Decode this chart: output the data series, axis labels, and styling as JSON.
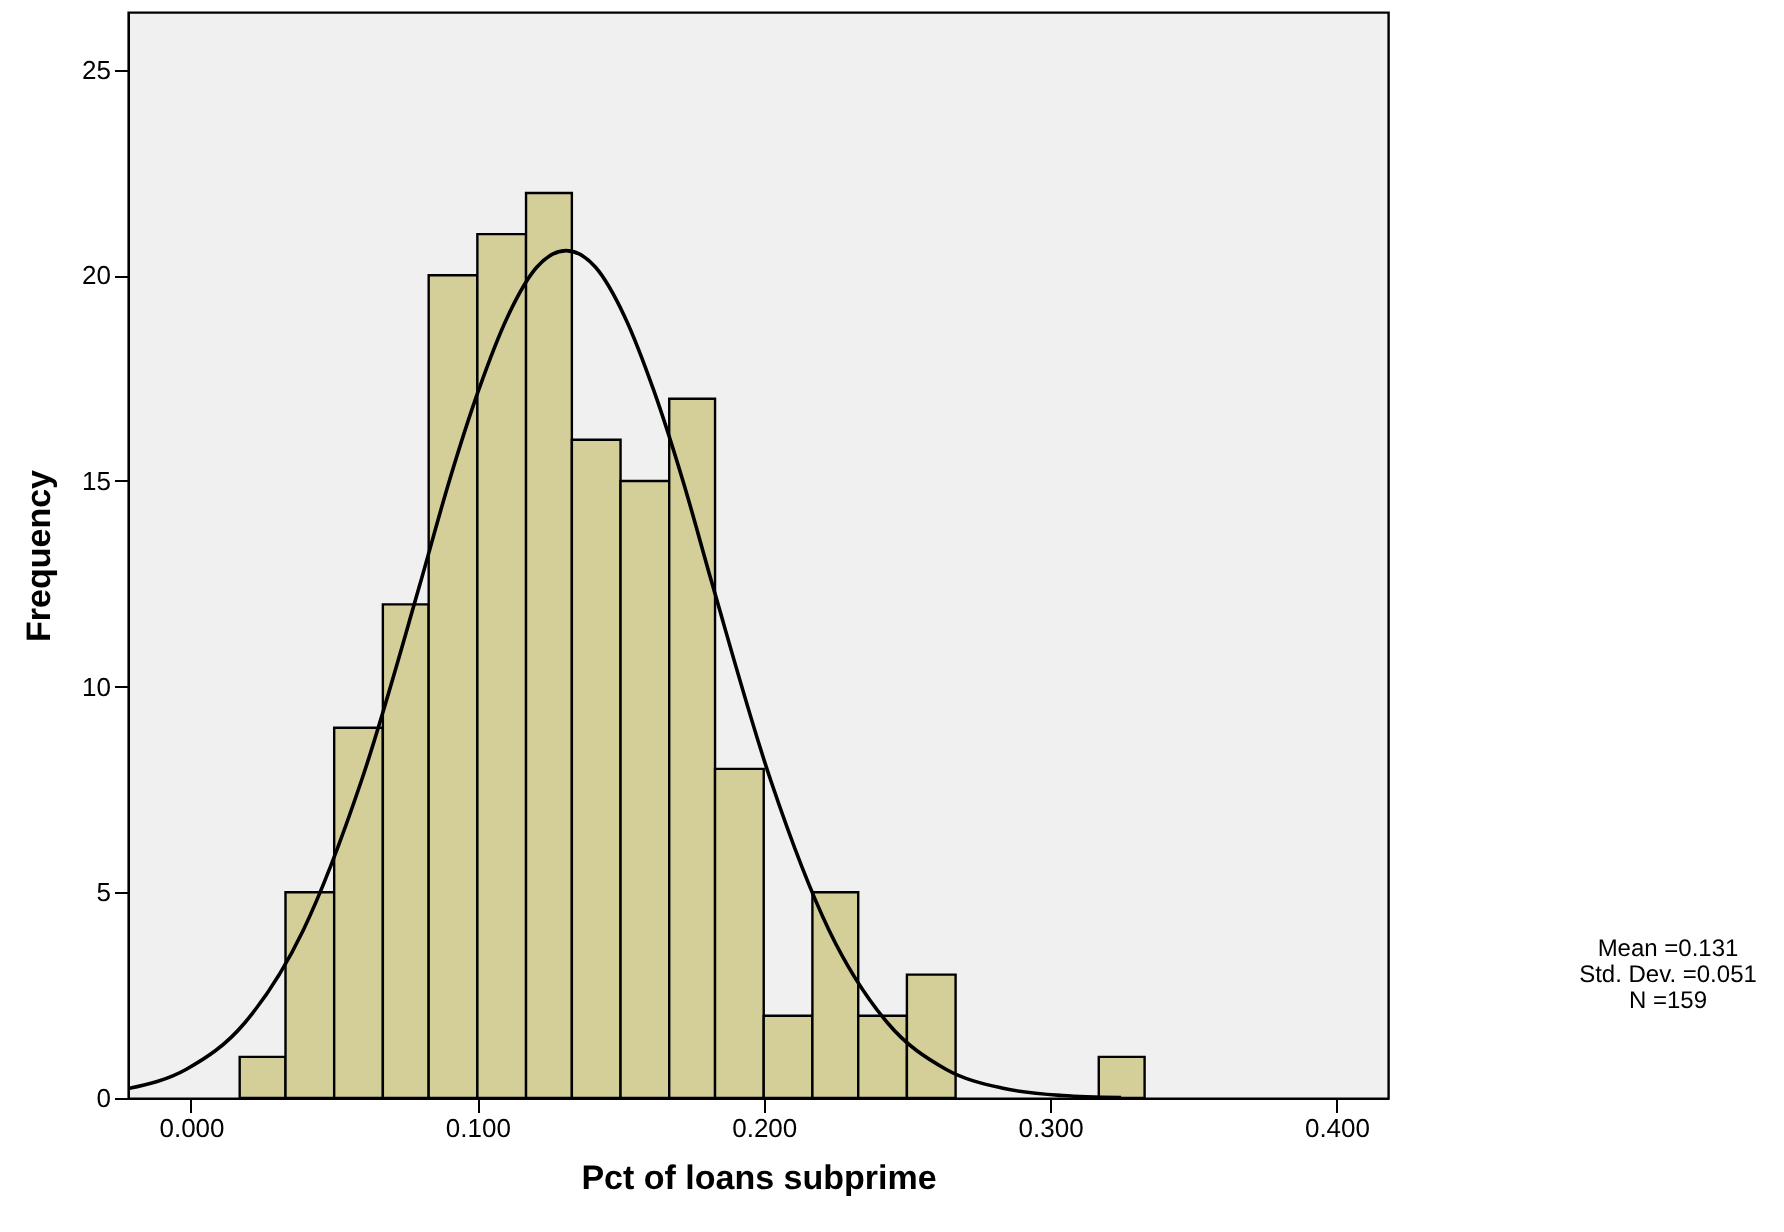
{
  "chart_data": {
    "type": "histogram",
    "xlabel": "Pct of loans subprime",
    "ylabel": "Frequency",
    "bins": [
      0.017,
      0.033,
      0.05,
      0.067,
      0.083,
      0.1,
      0.117,
      0.133,
      0.15,
      0.167,
      0.183,
      0.2,
      0.217,
      0.233,
      0.25,
      0.267,
      0.317,
      0.333
    ],
    "values": [
      1,
      5,
      9,
      12,
      20,
      21,
      22,
      16,
      15,
      17,
      8,
      2,
      5,
      2,
      3,
      0,
      1
    ],
    "color": "#d4cf98",
    "series": [
      {
        "type": "line",
        "color": "#000000",
        "x": [
          -0.022,
          -0.0016,
          0.0188,
          0.0392,
          0.0596,
          0.08,
          0.0902,
          0.1004,
          0.1106,
          0.1208,
          0.131,
          0.1412,
          0.1514,
          0.1616,
          0.1718,
          0.182,
          0.2024,
          0.2228,
          0.2432,
          0.2636,
          0.284,
          0.3044,
          0.3248
        ],
        "values": [
          0.23,
          0.7,
          1.83,
          4.08,
          7.73,
          12.5,
          15.0,
          17.2,
          19.0,
          20.2,
          20.6,
          20.2,
          19.0,
          17.2,
          15.0,
          12.5,
          7.73,
          4.08,
          1.83,
          0.7,
          0.23,
          0.06,
          0.01
        ]
      }
    ],
    "xlim": [
      -0.022,
      0.418
    ],
    "xticks": [
      {
        "value": 0,
        "label": "0.000"
      },
      {
        "value": 0.1,
        "label": "0.100"
      },
      {
        "value": 0.2,
        "label": "0.200"
      },
      {
        "value": 0.3,
        "label": "0.300"
      },
      {
        "value": 0.4,
        "label": "0.400"
      }
    ],
    "ylim": [
      0,
      26.4
    ],
    "yticks": [
      0,
      5,
      10,
      15,
      20,
      25
    ],
    "annotations": [
      "Mean =0.131",
      "Std. Dev. =0.051",
      "N =159"
    ]
  }
}
